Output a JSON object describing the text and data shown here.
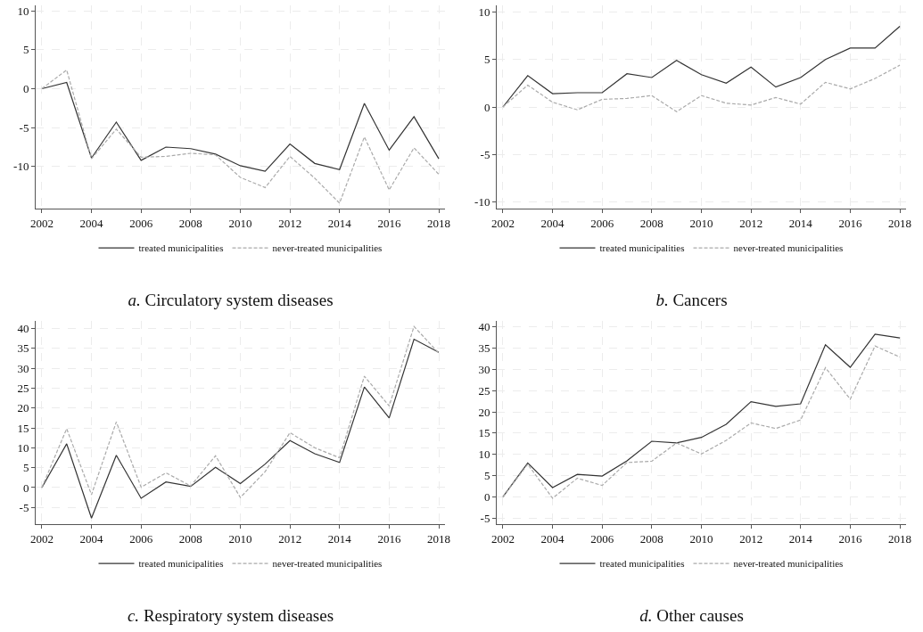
{
  "chart_data": [
    {
      "type": "line",
      "title": "a. Circulatory system diseases",
      "x": [
        2002,
        2003,
        2004,
        2005,
        2006,
        2007,
        2008,
        2009,
        2010,
        2011,
        2012,
        2013,
        2014,
        2015,
        2016,
        2017,
        2018
      ],
      "xlim": [
        2001.75,
        2018.25
      ],
      "xticks": [
        2002,
        2004,
        2006,
        2008,
        2010,
        2012,
        2014,
        2016,
        2018
      ],
      "ylim": [
        -15.4,
        10.7
      ],
      "yticks": [
        -10,
        -5,
        0,
        5,
        10
      ],
      "grid": true,
      "legend": "bottom",
      "marker": "none",
      "series": [
        {
          "name": "treated municipalities",
          "color": "#333333",
          "line_style": "solid",
          "values": [
            0,
            0.8,
            -8.9,
            -4.3,
            -9.2,
            -7.5,
            -7.7,
            -8.4,
            -9.9,
            -10.6,
            -7.1,
            -9.6,
            -10.4,
            -1.9,
            -7.9,
            -3.6,
            -9.0
          ]
        },
        {
          "name": "never-treated municipalities",
          "color": "#aaaaaa",
          "line_style": "dashed",
          "values": [
            0,
            2.4,
            -9.0,
            -5.2,
            -8.8,
            -8.7,
            -8.3,
            -8.5,
            -11.4,
            -12.7,
            -8.7,
            -11.5,
            -14.7,
            -6.2,
            -13.0,
            -7.6,
            -11.0
          ]
        }
      ]
    },
    {
      "type": "line",
      "title": "b. Cancers",
      "x": [
        2002,
        2003,
        2004,
        2005,
        2006,
        2007,
        2008,
        2009,
        2010,
        2011,
        2012,
        2013,
        2014,
        2015,
        2016,
        2017,
        2018
      ],
      "xlim": [
        2001.75,
        2018.25
      ],
      "xticks": [
        2002,
        2004,
        2006,
        2008,
        2010,
        2012,
        2014,
        2016,
        2018
      ],
      "ylim": [
        -10.7,
        10.7
      ],
      "yticks": [
        -10,
        -5,
        0,
        5,
        10
      ],
      "grid": true,
      "legend": "bottom",
      "marker": "none",
      "series": [
        {
          "name": "treated municipalities",
          "color": "#333333",
          "line_style": "solid",
          "values": [
            0,
            3.3,
            1.4,
            1.5,
            1.5,
            3.5,
            3.1,
            4.9,
            3.4,
            2.5,
            4.2,
            2.1,
            3.1,
            5.0,
            6.2,
            6.2,
            8.5
          ]
        },
        {
          "name": "never-treated municipalities",
          "color": "#aaaaaa",
          "line_style": "dashed",
          "values": [
            0,
            2.3,
            0.5,
            -0.3,
            0.8,
            0.9,
            1.2,
            -0.5,
            1.2,
            0.4,
            0.2,
            1.0,
            0.3,
            2.6,
            1.9,
            3.0,
            4.4
          ]
        }
      ]
    },
    {
      "type": "line",
      "title": "c. Respiratory system diseases",
      "x": [
        2002,
        2003,
        2004,
        2005,
        2006,
        2007,
        2008,
        2009,
        2010,
        2011,
        2012,
        2013,
        2014,
        2015,
        2016,
        2017,
        2018
      ],
      "xlim": [
        2001.75,
        2018.25
      ],
      "xticks": [
        2002,
        2004,
        2006,
        2008,
        2010,
        2012,
        2014,
        2016,
        2018
      ],
      "ylim": [
        -9.2,
        41.9
      ],
      "yticks": [
        -5,
        0,
        5,
        10,
        15,
        20,
        25,
        30,
        35,
        40
      ],
      "grid": true,
      "legend": "bottom",
      "marker": "none",
      "series": [
        {
          "name": "treated municipalities",
          "color": "#333333",
          "line_style": "solid",
          "values": [
            0,
            11.0,
            -7.7,
            8.1,
            -2.7,
            1.4,
            0.3,
            5.1,
            1.0,
            5.9,
            11.8,
            8.5,
            6.3,
            25.3,
            17.5,
            37.3,
            34.0
          ]
        },
        {
          "name": "never-treated municipalities",
          "color": "#aaaaaa",
          "line_style": "dashed",
          "values": [
            0,
            14.8,
            -1.8,
            16.5,
            0.1,
            3.7,
            0.4,
            8.0,
            -2.5,
            4.0,
            13.8,
            10.0,
            7.5,
            28.0,
            20.5,
            40.5,
            33.8
          ]
        }
      ]
    },
    {
      "type": "line",
      "title": "d. Other causes",
      "x": [
        2002,
        2003,
        2004,
        2005,
        2006,
        2007,
        2008,
        2009,
        2010,
        2011,
        2012,
        2013,
        2014,
        2015,
        2016,
        2017,
        2018
      ],
      "xlim": [
        2001.75,
        2018.25
      ],
      "xticks": [
        2002,
        2004,
        2006,
        2008,
        2010,
        2012,
        2014,
        2016,
        2018
      ],
      "ylim": [
        -6.4,
        41.4
      ],
      "yticks": [
        -5,
        0,
        5,
        10,
        15,
        20,
        25,
        30,
        35,
        40
      ],
      "grid": true,
      "legend": "bottom",
      "marker": "none",
      "series": [
        {
          "name": "treated municipalities",
          "color": "#333333",
          "line_style": "solid",
          "values": [
            0,
            8.0,
            2.2,
            5.3,
            4.9,
            8.5,
            13.1,
            12.7,
            14.0,
            17.1,
            22.4,
            21.3,
            21.9,
            35.8,
            30.5,
            38.3,
            37.4
          ]
        },
        {
          "name": "never-treated municipalities",
          "color": "#aaaaaa",
          "line_style": "dashed",
          "values": [
            0,
            7.7,
            -0.3,
            4.4,
            2.7,
            8.1,
            8.4,
            12.7,
            10.1,
            13.3,
            17.4,
            16.1,
            18.1,
            30.4,
            23.0,
            35.5,
            32.9
          ]
        }
      ]
    }
  ]
}
